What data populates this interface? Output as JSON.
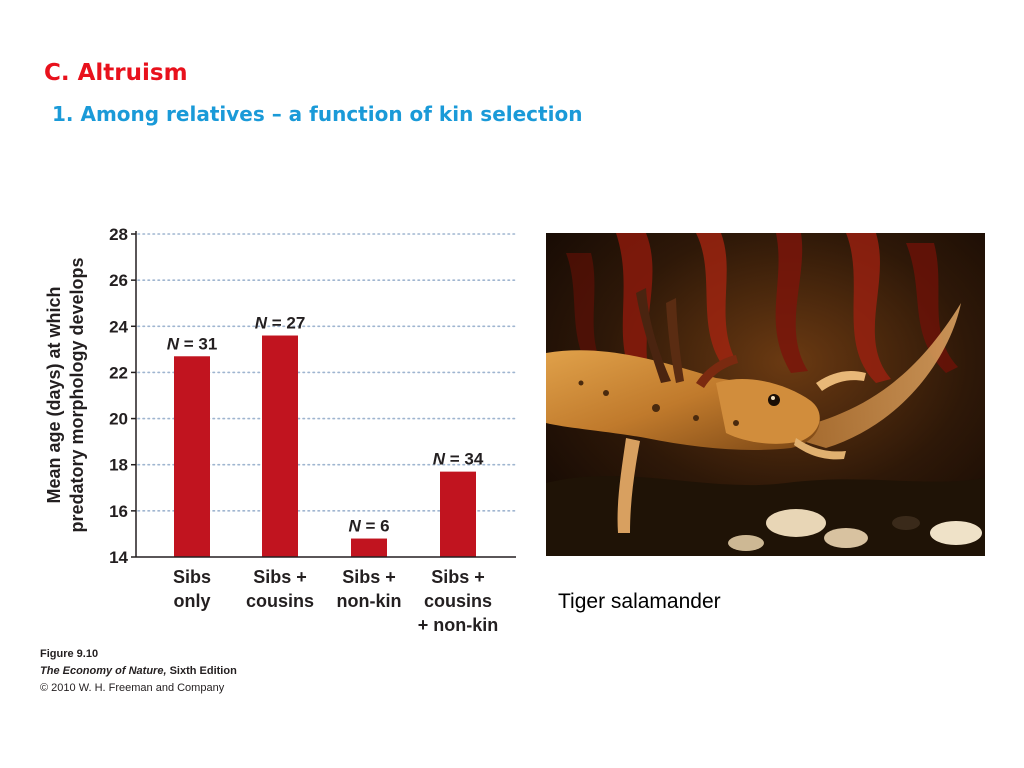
{
  "slide": {
    "title": "C. Altruism",
    "subtitle": "1. Among relatives – a function of kin selection"
  },
  "colors": {
    "title": "#e8111c",
    "subtitle": "#1a9ad8",
    "bar": "#c1141f",
    "gridline": "#9fb5d0",
    "axis": "#231f20"
  },
  "chart_data": {
    "type": "bar",
    "categories": [
      [
        "Sibs",
        "only"
      ],
      [
        "Sibs +",
        "cousins"
      ],
      [
        "Sibs +",
        "non-kin"
      ],
      [
        "Sibs +",
        "cousins",
        "+ non-kin"
      ]
    ],
    "values": [
      22.7,
      23.6,
      14.8,
      17.7
    ],
    "bar_labels": [
      "N = 31",
      "N = 27",
      "N = 6",
      "N = 34"
    ],
    "ylabel_lines": [
      "Mean age (days) at which",
      "predatory morphology develops"
    ],
    "ylim": [
      14,
      28
    ],
    "yticks": [
      14,
      16,
      18,
      20,
      22,
      24,
      26,
      28
    ],
    "grid": "horizontal dotted"
  },
  "figure_credit": {
    "figure_number": "Figure 9.10",
    "book_title": "The Economy of Nature,",
    "edition": " Sixth Edition",
    "copyright": "© 2010 W. H. Freeman and Company"
  },
  "photo": {
    "caption": "Tiger salamander"
  }
}
